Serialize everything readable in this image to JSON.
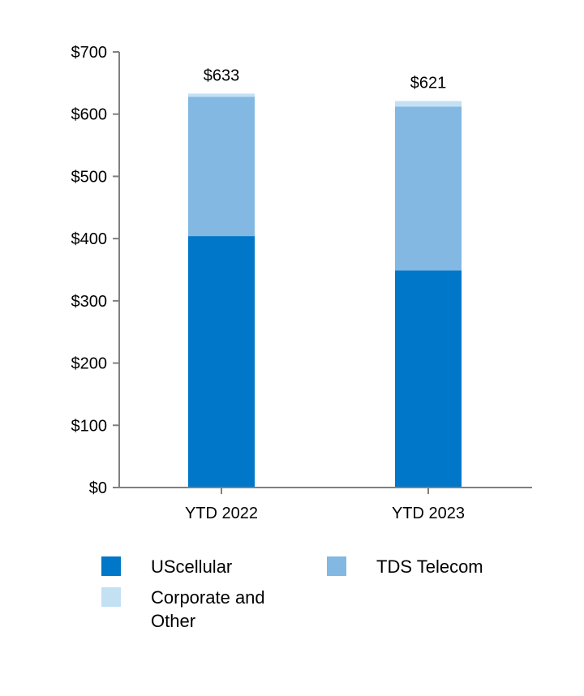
{
  "chart_data": {
    "type": "bar",
    "stacked": true,
    "title": "",
    "xlabel": "",
    "ylabel": "",
    "ylim": [
      0,
      700
    ],
    "yticks": [
      "$0",
      "$100",
      "$200",
      "$300",
      "$400",
      "$500",
      "$600",
      "$700"
    ],
    "ytick_values": [
      0,
      100,
      200,
      300,
      400,
      500,
      600,
      700
    ],
    "categories": [
      "YTD 2022",
      "YTD 2023"
    ],
    "series": [
      {
        "name": "UScellular",
        "color": "#0077c8",
        "values": [
          404,
          349
        ]
      },
      {
        "name": "TDS Telecom",
        "color": "#82b8e2",
        "values": [
          224,
          263
        ]
      },
      {
        "name": "Corporate and Other",
        "color": "#c4e0f3",
        "values": [
          5,
          9
        ]
      }
    ],
    "totals": [
      "$633",
      "$621"
    ],
    "total_values": [
      633,
      621
    ],
    "legend_position": "bottom"
  }
}
